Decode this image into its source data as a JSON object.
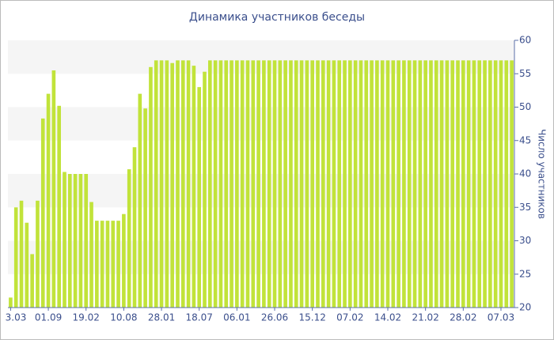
{
  "chart_data": {
    "type": "bar",
    "title": "Динамика участников беседы",
    "y_axis_label": "Число участников",
    "color": "#c1e33a",
    "grid": true,
    "ylim": [
      20,
      60
    ],
    "yticks": [
      20,
      25,
      30,
      35,
      40,
      45,
      50,
      55,
      60
    ],
    "categories": [
      "3.03",
      null,
      null,
      null,
      null,
      null,
      null,
      "01.09",
      null,
      null,
      null,
      null,
      null,
      null,
      "19.02",
      null,
      null,
      null,
      null,
      null,
      null,
      "10.08",
      null,
      null,
      null,
      null,
      null,
      null,
      "28.01",
      null,
      null,
      null,
      null,
      null,
      null,
      "18.07",
      null,
      null,
      null,
      null,
      null,
      null,
      "06.01",
      null,
      null,
      null,
      null,
      null,
      null,
      "26.06",
      null,
      null,
      null,
      null,
      null,
      null,
      "15.12",
      null,
      null,
      null,
      null,
      null,
      null,
      "07.02",
      null,
      null,
      null,
      null,
      null,
      null,
      "14.02",
      null,
      null,
      null,
      null,
      null,
      null,
      "21.02",
      null,
      null,
      null,
      null,
      null,
      null,
      "28.02",
      null,
      null,
      null,
      null,
      null,
      null,
      "07.03",
      null,
      null
    ],
    "values": [
      21.5,
      35,
      36,
      32.7,
      28,
      36,
      48.3,
      52,
      55.5,
      50.2,
      40.3,
      40,
      40,
      40,
      40,
      35.8,
      33,
      33,
      33,
      33,
      33,
      34,
      40.7,
      44,
      52,
      49.8,
      56,
      57,
      57,
      57,
      56.6,
      57,
      57,
      57,
      56.2,
      53,
      55.3,
      57,
      57,
      57,
      57,
      57,
      57,
      57,
      57,
      57,
      57,
      57,
      57,
      57,
      57,
      57,
      57,
      57,
      57,
      57,
      57,
      57,
      57,
      57,
      57,
      57,
      57,
      57,
      57,
      57,
      57,
      57,
      57,
      57,
      57,
      57,
      57,
      57,
      57,
      57,
      57,
      57,
      57,
      57,
      57,
      57,
      57,
      57,
      57,
      57,
      57,
      57,
      57,
      57,
      57,
      57,
      57,
      57
    ]
  }
}
